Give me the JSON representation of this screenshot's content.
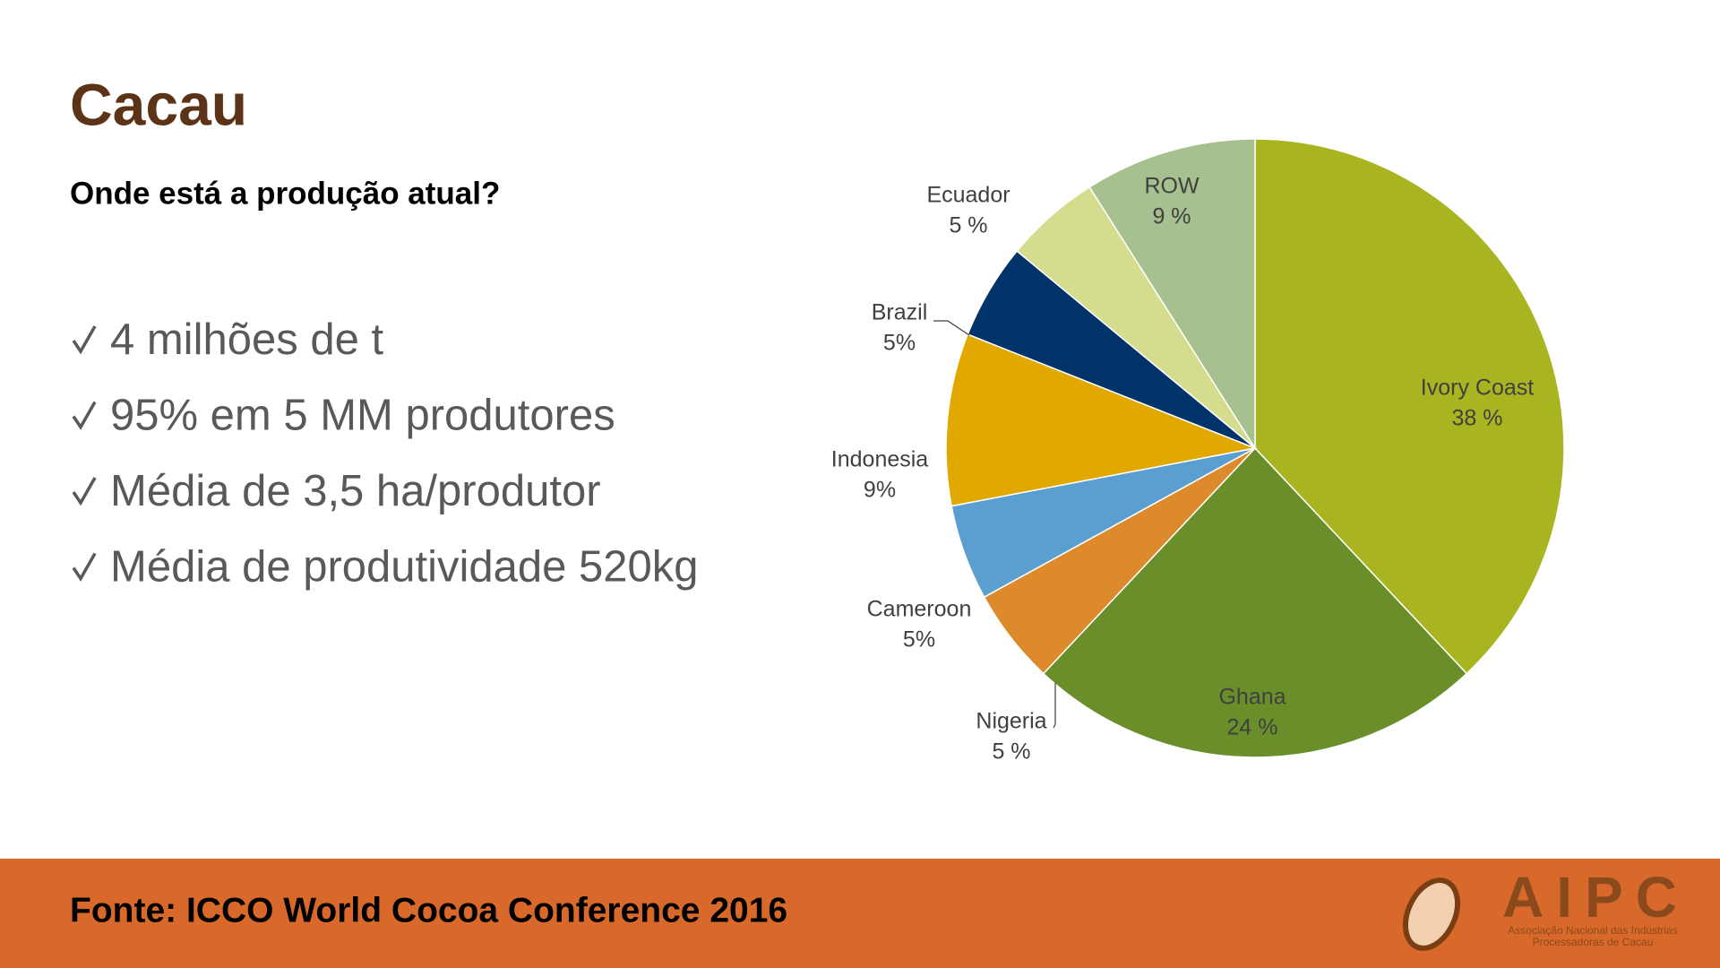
{
  "slide": {
    "title": "Cacau",
    "subtitle": "Onde está a produção atual?",
    "bullets": [
      "4 milhões de t",
      "95% em 5 MM produtores",
      "Média de 3,5 ha/produtor",
      "Média de produtividade 520kg"
    ],
    "footer": "Fonte: ICCO World Cocoa Conference 2016",
    "logo": {
      "name": "AIPC",
      "line1": "Associação Nacional das Indústrias",
      "line2": "Processadoras de Cacau"
    }
  },
  "chart_data": {
    "type": "pie",
    "categories": [
      "Ivory Coast",
      "Ghana",
      "Nigeria",
      "Cameroon",
      "Indonesia",
      "Brazil",
      "Ecuador",
      "ROW"
    ],
    "values": [
      38,
      24,
      5,
      5,
      9,
      5,
      5,
      9
    ],
    "value_labels": [
      "38 %",
      "24 %",
      "5 %",
      "5%",
      "9%",
      "5%",
      "5 %",
      "9 %"
    ],
    "colors": [
      "#a9b520",
      "#6a8f2a",
      "#dc8a2b",
      "#5b9fd0",
      "#e1a800",
      "#00336a",
      "#d5dc8d",
      "#a6c08f"
    ]
  }
}
